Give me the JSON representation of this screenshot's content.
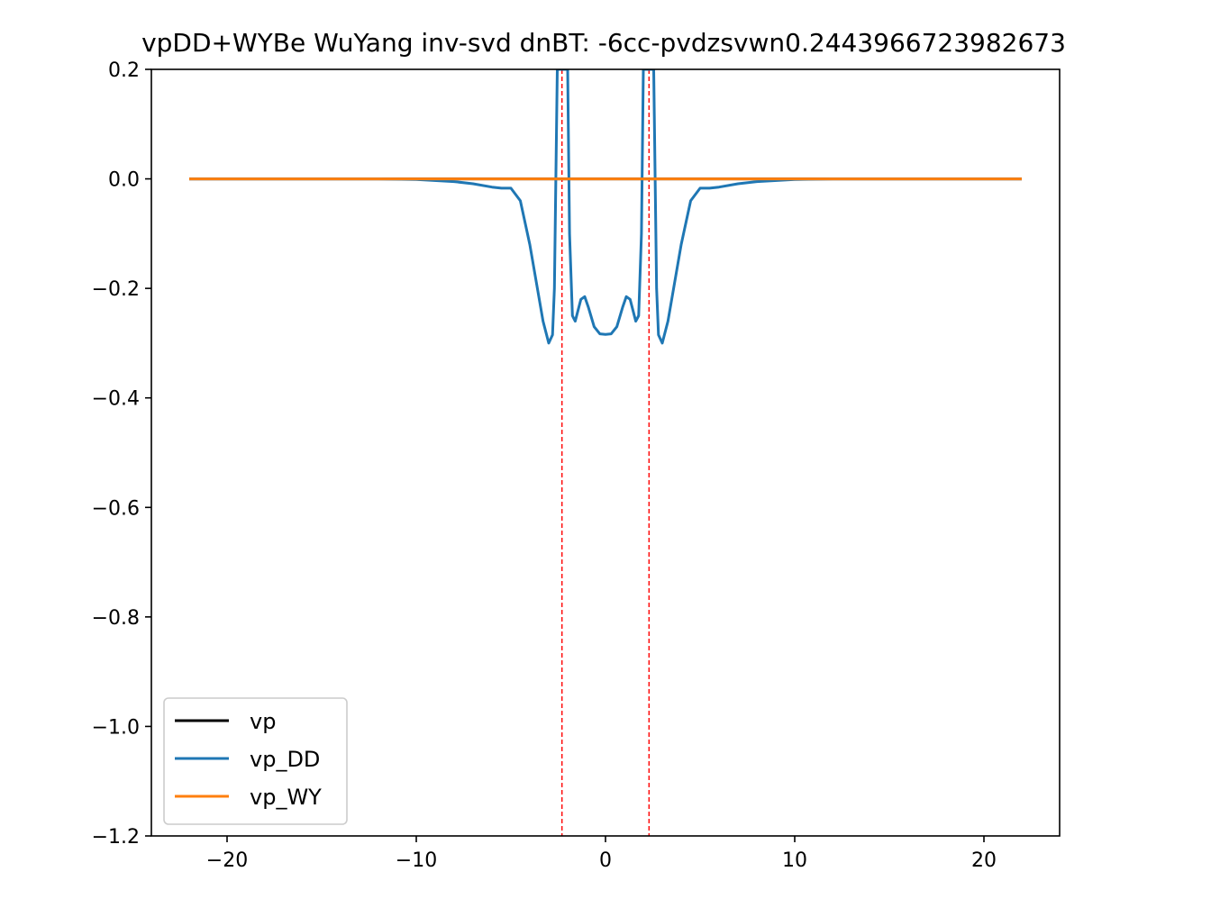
{
  "chart_data": {
    "type": "line",
    "title": "vpDD+WYBe WuYang inv-svd dnBT: -6cc-pvdzsvwn0.2443966723982673",
    "xlabel": "",
    "ylabel": "",
    "xlim": [
      -24,
      24
    ],
    "ylim": [
      -1.2,
      0.2
    ],
    "x_ticks": [
      -20,
      -10,
      0,
      10,
      20
    ],
    "x_tick_labels": [
      "−20",
      "−10",
      "0",
      "10",
      "20"
    ],
    "y_ticks": [
      0.2,
      0.0,
      -0.2,
      -0.4,
      -0.6,
      -0.8,
      -1.0,
      -1.2
    ],
    "y_tick_labels": [
      "0.2",
      "0.0",
      "−0.2",
      "−0.4",
      "−0.6",
      "−0.8",
      "−1.0",
      "−1.2"
    ],
    "grid": false,
    "legend_position": "lower-left",
    "vlines": [
      {
        "x": -2.3,
        "color": "#ff0000",
        "style": "dashed"
      },
      {
        "x": 2.3,
        "color": "#ff0000",
        "style": "dashed"
      }
    ],
    "series": [
      {
        "name": "vp",
        "color": "#000000",
        "x": [
          -22,
          22
        ],
        "y": [
          0,
          0
        ]
      },
      {
        "name": "vp_DD",
        "color": "#1f77b4",
        "x": [
          -22,
          -12,
          -10,
          -8,
          -7,
          -6,
          -5.5,
          -5,
          -4.5,
          -4,
          -3.6,
          -3.3,
          -3.0,
          -2.8,
          -2.7,
          -2.55,
          -2.35,
          -2.0,
          -1.9,
          -1.75,
          -1.6,
          -1.3,
          -1.1,
          -0.9,
          -0.6,
          -0.3,
          0,
          0.3,
          0.6,
          0.9,
          1.1,
          1.3,
          1.6,
          1.75,
          1.9,
          2.0,
          2.35,
          2.55,
          2.7,
          2.8,
          3.0,
          3.3,
          3.6,
          4,
          4.5,
          5,
          5.5,
          6,
          7,
          8,
          10,
          12,
          22
        ],
        "y": [
          0,
          0,
          -0.001,
          -0.005,
          -0.009,
          -0.015,
          -0.017,
          -0.017,
          -0.04,
          -0.12,
          -0.2,
          -0.26,
          -0.3,
          -0.285,
          -0.2,
          0.2,
          0.2,
          0.2,
          -0.1,
          -0.25,
          -0.26,
          -0.22,
          -0.215,
          -0.235,
          -0.27,
          -0.283,
          -0.284,
          -0.283,
          -0.27,
          -0.235,
          -0.215,
          -0.22,
          -0.26,
          -0.25,
          -0.1,
          0.2,
          0.2,
          0.2,
          -0.2,
          -0.285,
          -0.3,
          -0.26,
          -0.2,
          -0.12,
          -0.04,
          -0.017,
          -0.017,
          -0.015,
          -0.009,
          -0.005,
          -0.001,
          0,
          0
        ]
      },
      {
        "name": "vp_WY",
        "color": "#ff7f0e",
        "x": [
          -22,
          22
        ],
        "y": [
          0,
          0
        ]
      }
    ]
  }
}
